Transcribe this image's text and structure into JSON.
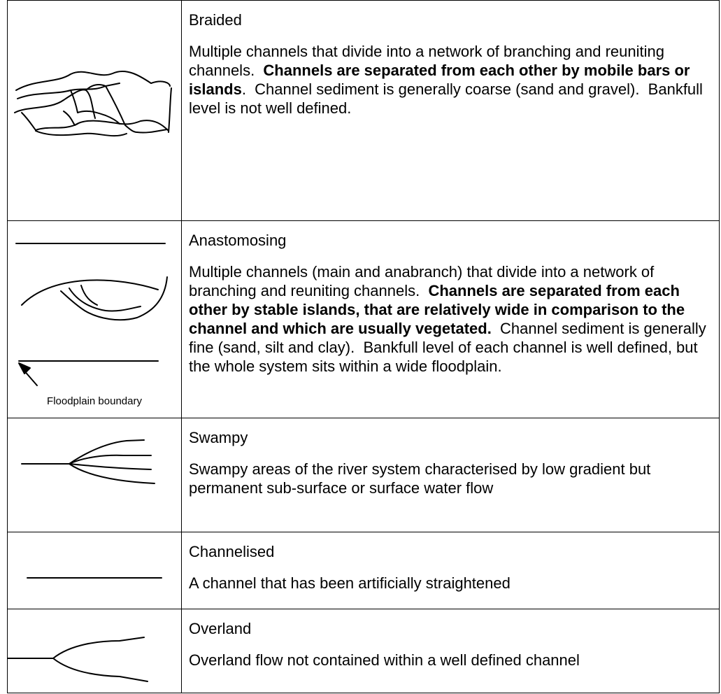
{
  "rows": [
    {
      "title": "Braided",
      "description": [
        {
          "text": "Multiple channels that divide into a network of branching and reuniting channels.  ",
          "bold": false
        },
        {
          "text": "Channels are separated from each other by mobile bars or islands",
          "bold": true
        },
        {
          "text": ".  Channel sediment is generally coarse (sand and gravel).  Bankfull level is not well defined.",
          "bold": false
        }
      ]
    },
    {
      "title": "Anastomosing",
      "sketch_label": "Floodplain boundary",
      "description": [
        {
          "text": "Multiple channels (main and anabranch) that divide into a network of branching and reuniting channels.  ",
          "bold": false
        },
        {
          "text": "Channels are separated from each other by stable islands, that are relatively wide in comparison to the channel and which are usually vegetated.",
          "bold": true
        },
        {
          "text": "  Channel sediment is generally fine (sand, silt and clay).  Bankfull level of each channel is well defined, but the whole system sits within a wide floodplain.",
          "bold": false
        }
      ]
    },
    {
      "title": "Swampy",
      "description": [
        {
          "text": "Swampy areas of the river system characterised by low gradient but permanent sub-surface or surface water flow",
          "bold": false
        }
      ]
    },
    {
      "title": "Channelised",
      "description": [
        {
          "text": "A channel that has been artificially straightened",
          "bold": false
        }
      ]
    },
    {
      "title": "Overland",
      "description": [
        {
          "text": "Overland flow not contained within a well defined channel",
          "bold": false
        }
      ]
    }
  ]
}
